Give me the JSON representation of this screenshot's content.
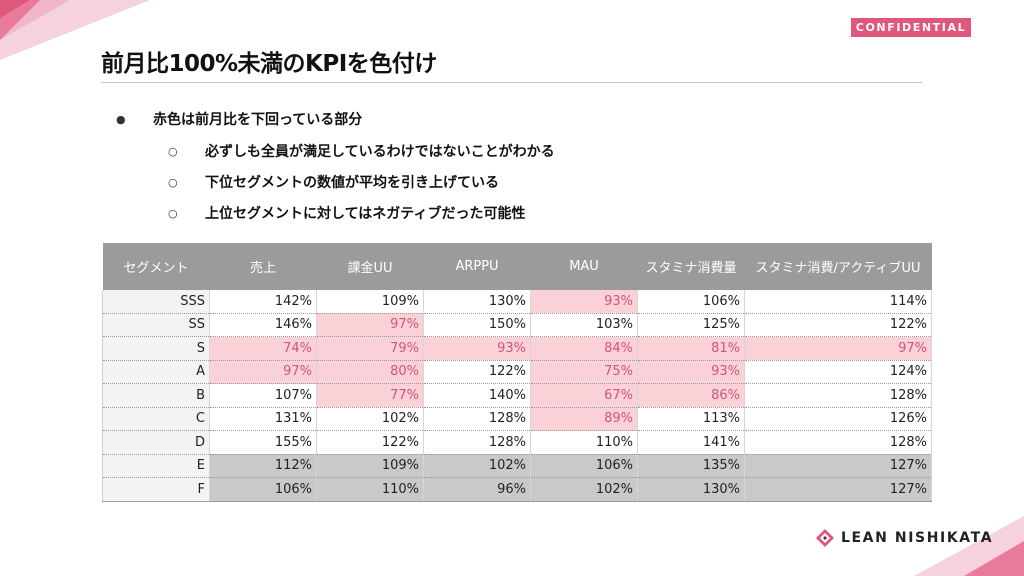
{
  "badge": "CONFIDENTIAL",
  "title": "前月比100%未満のKPIを色付け",
  "bullets": [
    {
      "text": "赤色は前月比を下回っている部分",
      "level": 1
    },
    {
      "text": "必ずしも全員が満足しているわけではないことがわかる",
      "level": 2
    },
    {
      "text": "下位セグメントの数値が平均を引き上げている",
      "level": 2
    },
    {
      "text": "上位セグメントに対してはネガティブだった可能性",
      "level": 2
    }
  ],
  "table": {
    "headers": [
      "セグメント",
      "売上",
      "課金UU",
      "ARPPU",
      "MAU",
      "スタミナ消費量",
      "スタミナ消費/アクティブUU"
    ],
    "rows": [
      {
        "segment": "SSS",
        "cells": [
          {
            "v": "142%",
            "s": "n"
          },
          {
            "v": "109%",
            "s": "n"
          },
          {
            "v": "130%",
            "s": "n"
          },
          {
            "v": "93%",
            "s": "r"
          },
          {
            "v": "106%",
            "s": "n"
          },
          {
            "v": "114%",
            "s": "n"
          }
        ]
      },
      {
        "segment": "SS",
        "cells": [
          {
            "v": "146%",
            "s": "n"
          },
          {
            "v": "97%",
            "s": "r"
          },
          {
            "v": "150%",
            "s": "n"
          },
          {
            "v": "103%",
            "s": "n"
          },
          {
            "v": "125%",
            "s": "n"
          },
          {
            "v": "122%",
            "s": "n"
          }
        ]
      },
      {
        "segment": "S",
        "cells": [
          {
            "v": "74%",
            "s": "r"
          },
          {
            "v": "79%",
            "s": "r"
          },
          {
            "v": "93%",
            "s": "r"
          },
          {
            "v": "84%",
            "s": "r"
          },
          {
            "v": "81%",
            "s": "r"
          },
          {
            "v": "97%",
            "s": "r"
          }
        ]
      },
      {
        "segment": "A",
        "cells": [
          {
            "v": "97%",
            "s": "r"
          },
          {
            "v": "80%",
            "s": "r"
          },
          {
            "v": "122%",
            "s": "n"
          },
          {
            "v": "75%",
            "s": "r"
          },
          {
            "v": "93%",
            "s": "r"
          },
          {
            "v": "124%",
            "s": "n"
          }
        ]
      },
      {
        "segment": "B",
        "cells": [
          {
            "v": "107%",
            "s": "n"
          },
          {
            "v": "77%",
            "s": "r"
          },
          {
            "v": "140%",
            "s": "n"
          },
          {
            "v": "67%",
            "s": "r"
          },
          {
            "v": "86%",
            "s": "r"
          },
          {
            "v": "128%",
            "s": "n"
          }
        ]
      },
      {
        "segment": "C",
        "cells": [
          {
            "v": "131%",
            "s": "n"
          },
          {
            "v": "102%",
            "s": "n"
          },
          {
            "v": "128%",
            "s": "n"
          },
          {
            "v": "89%",
            "s": "r"
          },
          {
            "v": "113%",
            "s": "n"
          },
          {
            "v": "126%",
            "s": "n"
          }
        ]
      },
      {
        "segment": "D",
        "cells": [
          {
            "v": "155%",
            "s": "n"
          },
          {
            "v": "122%",
            "s": "n"
          },
          {
            "v": "128%",
            "s": "n"
          },
          {
            "v": "110%",
            "s": "n"
          },
          {
            "v": "141%",
            "s": "n"
          },
          {
            "v": "128%",
            "s": "n"
          }
        ]
      },
      {
        "segment": "E",
        "cells": [
          {
            "v": "112%",
            "s": "g"
          },
          {
            "v": "109%",
            "s": "g"
          },
          {
            "v": "102%",
            "s": "g"
          },
          {
            "v": "106%",
            "s": "g"
          },
          {
            "v": "135%",
            "s": "g"
          },
          {
            "v": "127%",
            "s": "g"
          }
        ]
      },
      {
        "segment": "F",
        "cells": [
          {
            "v": "106%",
            "s": "g"
          },
          {
            "v": "110%",
            "s": "g"
          },
          {
            "v": "96%",
            "s": "g"
          },
          {
            "v": "102%",
            "s": "g"
          },
          {
            "v": "130%",
            "s": "g"
          },
          {
            "v": "127%",
            "s": "g"
          }
        ]
      }
    ]
  },
  "logo": {
    "text": "LEAN NISHIKATA",
    "icon": "lean-nishikata-logo-mark"
  },
  "colors": {
    "accent": "#e0577e",
    "below_highlight": "#f9d1d6",
    "below_text": "#d2557a",
    "header_gray": "#9b9b9b",
    "low_segment_gray": "#c9c9c9"
  }
}
